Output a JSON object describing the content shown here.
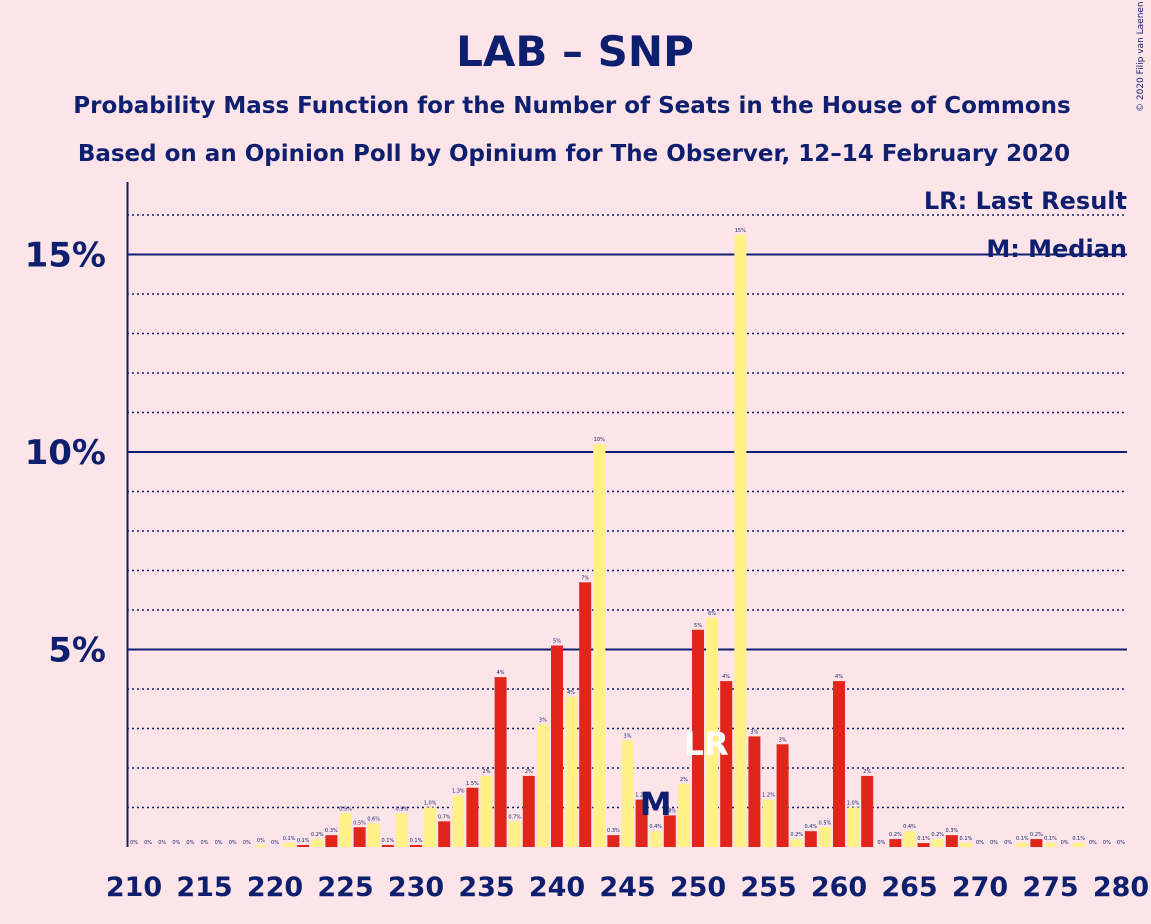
{
  "chart_data": {
    "type": "bar",
    "title": "LAB – SNP",
    "subtitle": "Probability Mass Function for the Number of Seats in the House of Commons",
    "subtitle2": "Based on an Opinion Poll by Opinium for The Observer, 12–14 February 2020",
    "copyright": "© 2020 Filip van Laenen",
    "legend": [
      "LR: Last Result",
      "M: Median"
    ],
    "markers": {
      "median_seat": 247,
      "median_label": "M",
      "last_result_seat": 251,
      "last_result_label": "LR"
    },
    "ylim": [
      0,
      16.5
    ],
    "yticks": [
      5,
      10,
      15
    ],
    "ytick_labels": [
      "5%",
      "10%",
      "15%"
    ],
    "xticks": [
      210,
      215,
      220,
      225,
      230,
      235,
      240,
      245,
      250,
      255,
      260,
      265,
      270,
      275,
      280
    ],
    "colors": {
      "even": "#e0261b",
      "odd": "#fff188",
      "axis": "#0d1f6e",
      "background": "#fde4e8"
    },
    "x": [
      210,
      211,
      212,
      213,
      214,
      215,
      216,
      217,
      218,
      219,
      220,
      221,
      222,
      223,
      224,
      225,
      226,
      227,
      228,
      229,
      230,
      231,
      232,
      233,
      234,
      235,
      236,
      237,
      238,
      239,
      240,
      241,
      242,
      243,
      244,
      245,
      246,
      247,
      248,
      249,
      250,
      251,
      252,
      253,
      254,
      255,
      256,
      257,
      258,
      259,
      260,
      261,
      262,
      263,
      264,
      265,
      266,
      267,
      268,
      269,
      270,
      271,
      272,
      273,
      274,
      275,
      276,
      277,
      278,
      279,
      280
    ],
    "values": [
      0,
      0,
      0,
      0,
      0,
      0,
      0,
      0,
      0,
      0.05,
      0,
      0.1,
      0.05,
      0.2,
      0.3,
      0.85,
      0.5,
      0.6,
      0.05,
      0.85,
      0.05,
      1.0,
      0.65,
      1.3,
      1.5,
      1.8,
      4.3,
      0.65,
      1.8,
      3.1,
      5.1,
      3.8,
      6.7,
      10.2,
      0.3,
      2.7,
      1.2,
      0.4,
      0.8,
      1.6,
      5.5,
      5.8,
      4.2,
      15.5,
      2.8,
      1.2,
      2.6,
      0.2,
      0.4,
      0.5,
      4.2,
      1.0,
      1.8,
      0,
      0.2,
      0.4,
      0.1,
      0.2,
      0.3,
      0.1,
      0,
      0,
      0,
      0.1,
      0.2,
      0.1,
      0,
      0.1,
      0,
      0,
      0
    ],
    "labels": [
      "0%",
      "0%",
      "0%",
      "0%",
      "0%",
      "0%",
      "0%",
      "0%",
      "0%",
      "0%",
      "0%",
      "0.1%",
      "0.1%",
      "0.2%",
      "0.3%",
      "0.9%",
      "0.5%",
      "0.6%",
      "0.1%",
      "0.9%",
      "0.1%",
      "1.0%",
      "0.7%",
      "1.3%",
      "1.5%",
      "2%",
      "4%",
      "0.7%",
      "2%",
      "3%",
      "5%",
      "4%",
      "7%",
      "10%",
      "0.3%",
      "3%",
      "1.2%",
      "0.4%",
      "0.8%",
      "2%",
      "5%",
      "6%",
      "4%",
      "15%",
      "3%",
      "1.2%",
      "3%",
      "0.2%",
      "0.4%",
      "0.5%",
      "4%",
      "1.0%",
      "2%",
      "0%",
      "0.2%",
      "0.4%",
      "0.1%",
      "0.2%",
      "0.3%",
      "0.1%",
      "0%",
      "0%",
      "0%",
      "0.1%",
      "0.2%",
      "0.1%",
      "0%",
      "0.1%",
      "0%",
      "0%",
      "0%"
    ]
  }
}
